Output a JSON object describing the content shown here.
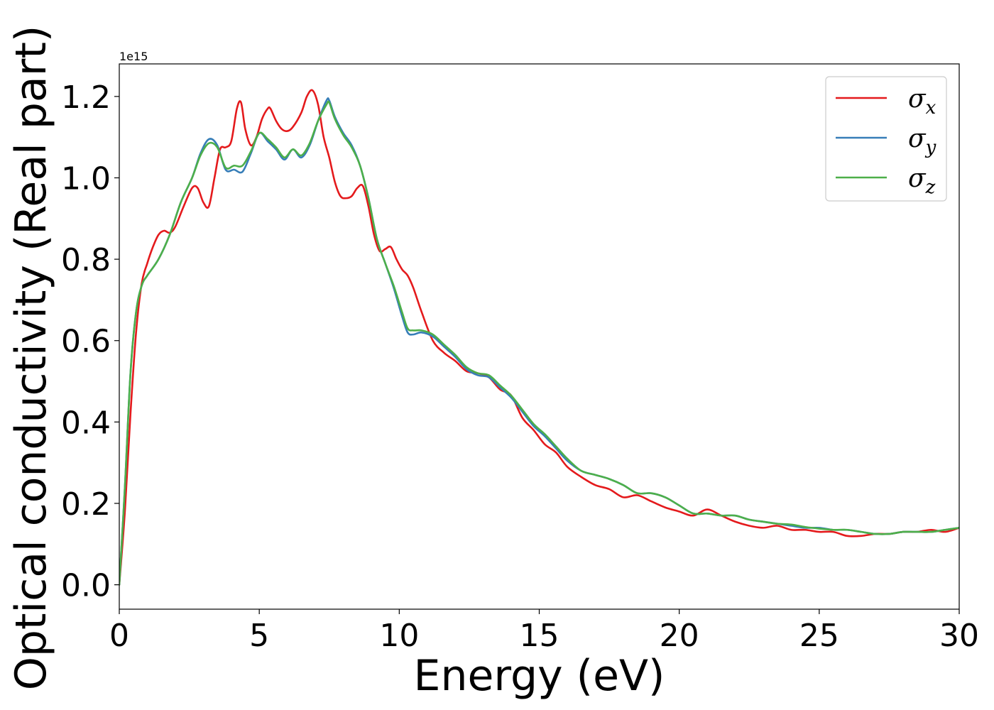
{
  "chart_data": {
    "type": "line",
    "title": "",
    "xlabel": "Energy (eV)",
    "ylabel": "Optical conductivity (Real part)",
    "y_offset_text": "1e15",
    "y_scale": 1000000000000000.0,
    "xlim": [
      0,
      30
    ],
    "ylim": [
      -0.06,
      1.28
    ],
    "xticks": [
      0,
      5,
      10,
      15,
      20,
      25,
      30
    ],
    "xtick_labels": [
      "0",
      "5",
      "10",
      "15",
      "20",
      "25",
      "30"
    ],
    "yticks": [
      0.0,
      0.2,
      0.4,
      0.6,
      0.8,
      1.0,
      1.2
    ],
    "ytick_labels": [
      "0.0",
      "0.2",
      "0.4",
      "0.6",
      "0.8",
      "1.0",
      "1.2"
    ],
    "grid": false,
    "legend": "top-right",
    "series": [
      {
        "name": "σx",
        "symbol": "σ",
        "subscript": "x",
        "color": "#e41a1c",
        "x": [
          0,
          0.2,
          0.4,
          0.6,
          0.8,
          1.0,
          1.2,
          1.4,
          1.6,
          1.8,
          2.0,
          2.3,
          2.6,
          2.8,
          3.0,
          3.2,
          3.4,
          3.6,
          3.8,
          4.0,
          4.2,
          4.35,
          4.5,
          4.7,
          4.9,
          5.1,
          5.3,
          5.4,
          5.6,
          5.8,
          6.0,
          6.2,
          6.5,
          6.7,
          6.9,
          7.1,
          7.3,
          7.5,
          7.7,
          7.9,
          8.1,
          8.3,
          8.5,
          8.7,
          8.9,
          9.1,
          9.3,
          9.5,
          9.7,
          9.9,
          10.1,
          10.3,
          10.5,
          10.8,
          11.2,
          11.6,
          12.0,
          12.4,
          12.8,
          13.2,
          13.6,
          14.0,
          14.4,
          14.8,
          15.2,
          15.6,
          16.0,
          16.5,
          17.0,
          17.5,
          18.0,
          18.5,
          19.0,
          19.5,
          20.0,
          20.5,
          21.0,
          21.5,
          22.0,
          22.5,
          23.0,
          23.5,
          24.0,
          24.5,
          25.0,
          25.5,
          26.0,
          26.5,
          27.0,
          27.5,
          28.0,
          28.5,
          29.0,
          29.5,
          30.0
        ],
        "y": [
          0.0,
          0.18,
          0.42,
          0.62,
          0.74,
          0.79,
          0.83,
          0.86,
          0.87,
          0.865,
          0.88,
          0.93,
          0.975,
          0.975,
          0.94,
          0.93,
          1.0,
          1.07,
          1.075,
          1.09,
          1.17,
          1.185,
          1.12,
          1.08,
          1.1,
          1.145,
          1.17,
          1.17,
          1.14,
          1.12,
          1.115,
          1.125,
          1.16,
          1.2,
          1.215,
          1.18,
          1.1,
          1.05,
          0.99,
          0.955,
          0.95,
          0.955,
          0.975,
          0.98,
          0.93,
          0.86,
          0.82,
          0.825,
          0.83,
          0.8,
          0.775,
          0.76,
          0.73,
          0.67,
          0.6,
          0.57,
          0.55,
          0.525,
          0.52,
          0.51,
          0.48,
          0.465,
          0.41,
          0.38,
          0.345,
          0.325,
          0.29,
          0.265,
          0.245,
          0.235,
          0.215,
          0.22,
          0.205,
          0.19,
          0.18,
          0.17,
          0.185,
          0.17,
          0.155,
          0.145,
          0.14,
          0.145,
          0.135,
          0.135,
          0.13,
          0.13,
          0.12,
          0.12,
          0.125,
          0.125,
          0.13,
          0.13,
          0.135,
          0.13,
          0.14
        ]
      },
      {
        "name": "σy",
        "symbol": "σ",
        "subscript": "y",
        "color": "#377eb8",
        "x": [
          0,
          0.2,
          0.4,
          0.6,
          0.8,
          1.0,
          1.4,
          1.8,
          2.2,
          2.6,
          2.9,
          3.2,
          3.5,
          3.8,
          4.1,
          4.4,
          4.7,
          5.0,
          5.3,
          5.6,
          5.9,
          6.2,
          6.5,
          6.8,
          7.1,
          7.4,
          7.5,
          7.7,
          8.0,
          8.3,
          8.6,
          8.9,
          9.2,
          9.5,
          9.8,
          10.1,
          10.3,
          10.5,
          10.8,
          11.2,
          11.6,
          12.0,
          12.4,
          12.8,
          13.2,
          13.6,
          14.0,
          14.4,
          14.8,
          15.2,
          15.6,
          16.0,
          16.5,
          17.0,
          17.5,
          18.0,
          18.5,
          19.0,
          19.5,
          20.0,
          20.5,
          21.0,
          21.5,
          22.0,
          22.5,
          23.0,
          23.5,
          24.0,
          24.5,
          25.0,
          25.5,
          26.0,
          26.5,
          27.0,
          27.5,
          28.0,
          28.5,
          29.0,
          29.5,
          30.0
        ],
        "y": [
          0.0,
          0.24,
          0.52,
          0.67,
          0.735,
          0.76,
          0.8,
          0.86,
          0.94,
          1.0,
          1.06,
          1.095,
          1.08,
          1.02,
          1.02,
          1.015,
          1.06,
          1.11,
          1.09,
          1.07,
          1.045,
          1.07,
          1.05,
          1.08,
          1.14,
          1.19,
          1.19,
          1.15,
          1.11,
          1.08,
          1.03,
          0.95,
          0.85,
          0.79,
          0.73,
          0.66,
          0.62,
          0.615,
          0.62,
          0.61,
          0.585,
          0.56,
          0.53,
          0.515,
          0.51,
          0.485,
          0.46,
          0.425,
          0.39,
          0.365,
          0.335,
          0.305,
          0.28,
          0.27,
          0.26,
          0.245,
          0.225,
          0.225,
          0.215,
          0.195,
          0.175,
          0.175,
          0.17,
          0.17,
          0.16,
          0.155,
          0.15,
          0.145,
          0.14,
          0.14,
          0.135,
          0.135,
          0.13,
          0.125,
          0.125,
          0.13,
          0.13,
          0.13,
          0.135,
          0.14
        ]
      },
      {
        "name": "σz",
        "symbol": "σ",
        "subscript": "z",
        "color": "#4daf4a",
        "x": [
          0,
          0.2,
          0.4,
          0.6,
          0.8,
          1.0,
          1.4,
          1.8,
          2.2,
          2.6,
          2.9,
          3.2,
          3.5,
          3.8,
          4.1,
          4.4,
          4.7,
          5.0,
          5.3,
          5.6,
          5.9,
          6.2,
          6.5,
          6.8,
          7.1,
          7.4,
          7.5,
          7.7,
          8.0,
          8.3,
          8.6,
          8.9,
          9.2,
          9.5,
          9.8,
          10.1,
          10.3,
          10.5,
          10.8,
          11.2,
          11.6,
          12.0,
          12.4,
          12.8,
          13.2,
          13.6,
          14.0,
          14.4,
          14.8,
          15.2,
          15.6,
          16.0,
          16.5,
          17.0,
          17.5,
          18.0,
          18.5,
          19.0,
          19.5,
          20.0,
          20.5,
          21.0,
          21.5,
          22.0,
          22.5,
          23.0,
          23.5,
          24.0,
          24.5,
          25.0,
          25.5,
          26.0,
          26.5,
          27.0,
          27.5,
          28.0,
          28.5,
          29.0,
          29.5,
          30.0
        ],
        "y": [
          0.0,
          0.24,
          0.52,
          0.67,
          0.735,
          0.76,
          0.8,
          0.86,
          0.94,
          1.0,
          1.055,
          1.085,
          1.075,
          1.025,
          1.03,
          1.03,
          1.065,
          1.11,
          1.095,
          1.075,
          1.05,
          1.07,
          1.055,
          1.085,
          1.14,
          1.18,
          1.185,
          1.145,
          1.105,
          1.075,
          1.03,
          0.95,
          0.85,
          0.79,
          0.735,
          0.67,
          0.63,
          0.625,
          0.625,
          0.615,
          0.59,
          0.565,
          0.535,
          0.52,
          0.515,
          0.49,
          0.465,
          0.43,
          0.395,
          0.37,
          0.34,
          0.31,
          0.28,
          0.27,
          0.26,
          0.245,
          0.225,
          0.225,
          0.215,
          0.195,
          0.175,
          0.175,
          0.17,
          0.17,
          0.16,
          0.155,
          0.15,
          0.148,
          0.142,
          0.138,
          0.135,
          0.135,
          0.13,
          0.125,
          0.125,
          0.13,
          0.13,
          0.13,
          0.135,
          0.14
        ]
      }
    ]
  }
}
